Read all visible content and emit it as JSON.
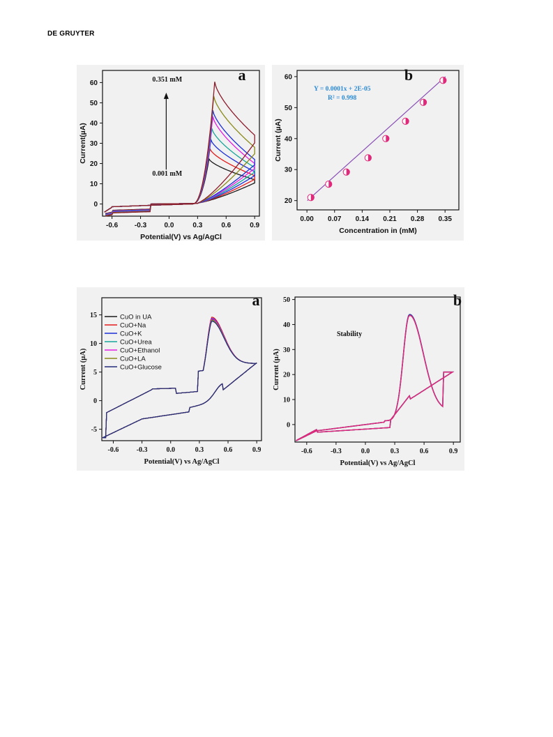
{
  "header": {
    "publisher": "DE GRUYTER"
  },
  "chart_data": [
    {
      "id": "fig1a",
      "type": "line",
      "panel_label": "a",
      "xlabel": "Potential(V) vs Ag/AgCl",
      "ylabel": "Current(µA)",
      "xlim": [
        -0.7,
        0.95
      ],
      "ylim": [
        -6,
        66
      ],
      "xticks": [
        -0.6,
        -0.3,
        0.0,
        0.3,
        0.6,
        0.9
      ],
      "yticks": [
        0,
        10,
        20,
        30,
        40,
        50,
        60
      ],
      "annotations": {
        "top": "0.351 mM",
        "bottom": "0.001 mM"
      },
      "series": [
        {
          "color": "#1a1a1a",
          "peak_v": 0.42,
          "peak_i": 22,
          "end_i": 11,
          "neg_min": -2.5
        },
        {
          "color": "#e31b1b",
          "peak_v": 0.43,
          "peak_i": 27,
          "end_i": 13,
          "neg_min": -2.6
        },
        {
          "color": "#1c2fd6",
          "peak_v": 0.44,
          "peak_i": 31.5,
          "end_i": 15,
          "neg_min": -2.8
        },
        {
          "color": "#17a59a",
          "peak_v": 0.45,
          "peak_i": 37,
          "end_i": 17,
          "neg_min": -3.0
        },
        {
          "color": "#e31ee3",
          "peak_v": 0.46,
          "peak_i": 43,
          "end_i": 19,
          "neg_min": -3.2
        },
        {
          "color": "#1c2fd6",
          "peak_v": 0.46,
          "peak_i": 46,
          "end_i": 21,
          "neg_min": -3.4
        },
        {
          "color": "#8a8a1a",
          "peak_v": 0.47,
          "peak_i": 53,
          "end_i": 27,
          "neg_min": -3.6
        },
        {
          "color": "#8b1c2c",
          "peak_v": 0.48,
          "peak_i": 60,
          "end_i": 33,
          "neg_min": -3.8
        }
      ]
    },
    {
      "id": "fig1b",
      "type": "scatter",
      "panel_label": "b",
      "xlabel": "Concentration in (mM)",
      "ylabel": "Current (µA)",
      "xlim": [
        -0.025,
        0.385
      ],
      "ylim": [
        17,
        62
      ],
      "xticks": [
        "0.00",
        "0.07",
        "0.14",
        "0.21",
        "0.28",
        "0.35"
      ],
      "xtick_values": [
        0.0,
        0.07,
        0.14,
        0.21,
        0.28,
        0.35
      ],
      "yticks": [
        20,
        30,
        40,
        50,
        60
      ],
      "equation": "Y = 0.0001x + 2E-05",
      "r2": "R² = 0.998",
      "fit_line": {
        "x0": 0.001,
        "y0": 20.0,
        "x1": 0.351,
        "y1": 60.0
      },
      "points": [
        {
          "x": 0.01,
          "y": 21.0
        },
        {
          "x": 0.055,
          "y": 25.3
        },
        {
          "x": 0.1,
          "y": 29.2
        },
        {
          "x": 0.155,
          "y": 33.8
        },
        {
          "x": 0.2,
          "y": 40.0
        },
        {
          "x": 0.25,
          "y": 45.6
        },
        {
          "x": 0.295,
          "y": 51.7
        },
        {
          "x": 0.345,
          "y": 58.8
        }
      ],
      "marker_color": "#e0297a"
    },
    {
      "id": "fig2a",
      "type": "line",
      "panel_label": "a",
      "xlabel": "Potential(V) vs Ag/AgCl",
      "ylabel": "Current (µA)",
      "xlim": [
        -0.72,
        0.95
      ],
      "ylim": [
        -7,
        18
      ],
      "xticks": [
        -0.6,
        -0.3,
        0.0,
        0.3,
        0.6,
        0.9
      ],
      "yticks": [
        -5,
        0,
        5,
        10,
        15
      ],
      "legend_position": "top-left",
      "series": [
        {
          "name": "CuO in UA",
          "color": "#1a1a1a",
          "peak_i": 14.2
        },
        {
          "name": "CuO+Na",
          "color": "#e31b1b",
          "peak_i": 14.6
        },
        {
          "name": "CuO+K",
          "color": "#1c2fd6",
          "peak_i": 14.4
        },
        {
          "name": "CuO+Urea",
          "color": "#17a59a",
          "peak_i": 14.0
        },
        {
          "name": "CuO+Ethanol",
          "color": "#e31ee3",
          "peak_i": 14.3
        },
        {
          "name": "CuO+LA",
          "color": "#8a8a1a",
          "peak_i": 14.1
        },
        {
          "name": "CuO+Glucose",
          "color": "#232a7a",
          "peak_i": 13.9
        }
      ]
    },
    {
      "id": "fig2b",
      "type": "line",
      "panel_label": "b",
      "xlabel": "Potential(V) vs Ag/AgCl",
      "ylabel": "Current (µA)",
      "xlim": [
        -0.72,
        0.97
      ],
      "ylim": [
        -7,
        51
      ],
      "xticks": [
        -0.6,
        -0.3,
        0.0,
        0.3,
        0.6,
        0.9
      ],
      "yticks": [
        0,
        10,
        20,
        30,
        40,
        50
      ],
      "annotation": "Stability",
      "series": [
        {
          "color": "#17a59a",
          "peak_i": 43.8
        },
        {
          "color": "#3a3aa0",
          "peak_i": 44.0
        },
        {
          "color": "#e0297a",
          "peak_i": 43.6
        }
      ]
    }
  ]
}
